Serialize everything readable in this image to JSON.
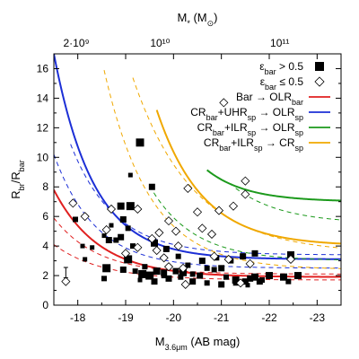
{
  "chart_data": {
    "type": "scatter",
    "xlabel": "M3.6μm (AB mag)",
    "ylabel": "Rbr/Rbar",
    "top_xlabel": "M* (M⊙)",
    "xlim": [
      -17.5,
      -23.5
    ],
    "ylim": [
      0,
      17
    ],
    "xticks": [
      -18,
      -19,
      -20,
      -21,
      -22,
      -23
    ],
    "yticks": [
      0,
      2,
      4,
      6,
      8,
      10,
      12,
      14,
      16
    ],
    "top_ticks": [
      {
        "label": "2·10⁹",
        "mag": -17.97
      },
      {
        "label": "10¹⁰",
        "mag": -19.72
      },
      {
        "label": "10¹¹",
        "mag": -22.22
      }
    ],
    "error_bar": {
      "x": -17.75,
      "y": 2.2,
      "dy": 0.35
    },
    "legend_position": "top-right",
    "legend": [
      {
        "label_main": "ε",
        "label_sub": "bar",
        "label_rest": " > 0.5",
        "marker": "filled-square"
      },
      {
        "label_main": "ε",
        "label_sub": "bar",
        "label_rest": " ≤ 0.5",
        "marker": "open-diamond"
      },
      {
        "label": "Bar → OLR_bar",
        "color": "#e02020"
      },
      {
        "label": "CR_bar+UHR_sp → OLR_sp",
        "color": "#1c2fd6"
      },
      {
        "label": "CR_bar+ILR_sp → OLR_sp",
        "color": "#1c9a1c"
      },
      {
        "label": "CR_bar+ILR_sp → CR_sp",
        "color": "#f0a800"
      }
    ],
    "series": [
      {
        "name": "ε_bar > 0.5",
        "marker": "filled-square",
        "points": [
          [
            -17.95,
            5.8,
            0.6
          ],
          [
            -18.1,
            4.0,
            0.5
          ],
          [
            -18.15,
            3.1,
            0.5
          ],
          [
            -18.3,
            3.9,
            0.5
          ],
          [
            -18.55,
            4.7,
            0.5
          ],
          [
            -18.7,
            5.4,
            0.5
          ],
          [
            -18.65,
            4.4,
            0.7
          ],
          [
            -18.9,
            6.7,
            0.8
          ],
          [
            -18.95,
            5.8,
            0.7
          ],
          [
            -19.1,
            6.7,
            0.9
          ],
          [
            -19.1,
            8.8,
            0.5
          ],
          [
            -19.3,
            11.0,
            0.9
          ],
          [
            -19.15,
            4.0,
            0.6
          ],
          [
            -18.9,
            4.6,
            0.7
          ],
          [
            -18.8,
            4.4,
            0.6
          ],
          [
            -19.05,
            3.1,
            0.9
          ],
          [
            -18.6,
            2.5,
            0.9
          ],
          [
            -18.55,
            1.8,
            0.6
          ],
          [
            -18.95,
            2.4,
            0.7
          ],
          [
            -19.2,
            2.3,
            0.6
          ],
          [
            -19.35,
            2.1,
            0.9
          ],
          [
            -19.5,
            2.0,
            0.9
          ],
          [
            -19.65,
            2.3,
            0.8
          ],
          [
            -19.8,
            2.2,
            0.7
          ],
          [
            -19.8,
            2.0,
            0.6
          ],
          [
            -19.9,
            1.8,
            0.7
          ],
          [
            -20.05,
            2.3,
            0.7
          ],
          [
            -20.2,
            2.2,
            0.8
          ],
          [
            -20.4,
            2.1,
            0.6
          ],
          [
            -20.55,
            2.0,
            0.7
          ],
          [
            -20.7,
            2.5,
            0.6
          ],
          [
            -20.85,
            2.4,
            0.6
          ],
          [
            -21.0,
            2.5,
            0.7
          ],
          [
            -21.1,
            1.9,
            0.6
          ],
          [
            -21.3,
            1.7,
            0.8
          ],
          [
            -21.3,
            1.5,
            0.6
          ],
          [
            -21.5,
            1.6,
            0.7
          ],
          [
            -21.6,
            1.8,
            0.7
          ],
          [
            -21.7,
            1.9,
            0.8
          ],
          [
            -21.85,
            1.7,
            0.6
          ],
          [
            -22.0,
            2.0,
            0.8
          ],
          [
            -22.3,
            1.9,
            0.8
          ],
          [
            -22.45,
            3.4,
            0.8
          ],
          [
            -21.7,
            3.5,
            0.7
          ],
          [
            -21.45,
            3.3,
            0.7
          ],
          [
            -21.2,
            3.0,
            0.6
          ],
          [
            -20.9,
            3.2,
            0.6
          ],
          [
            -20.6,
            3.0,
            0.7
          ],
          [
            -20.3,
            2.7,
            0.6
          ],
          [
            -20.1,
            3.3,
            0.6
          ],
          [
            -19.85,
            3.8,
            0.7
          ],
          [
            -19.6,
            4.2,
            0.8
          ],
          [
            -19.4,
            2.6,
            0.6
          ],
          [
            -19.6,
            1.6,
            0.7
          ],
          [
            -20.4,
            1.6,
            0.7
          ],
          [
            -21.0,
            1.4,
            0.7
          ],
          [
            -21.8,
            1.6,
            0.7
          ],
          [
            -22.4,
            1.6,
            0.6
          ],
          [
            -22.6,
            2.0,
            0.8
          ],
          [
            -21.55,
            1.35,
            0.5
          ],
          [
            -20.7,
            1.5,
            0.6
          ],
          [
            -19.3,
            1.7,
            0.5
          ],
          [
            -20.15,
            1.9,
            0.6
          ],
          [
            -19.55,
            8.0,
            0.7
          ],
          [
            -19.05,
            5.2,
            0.6
          ]
        ]
      },
      {
        "name": "ε_bar ≤ 0.5",
        "marker": "open-diamond",
        "points": [
          [
            -17.75,
            1.6
          ],
          [
            -17.9,
            6.9
          ],
          [
            -18.15,
            6.0
          ],
          [
            -18.6,
            5.1
          ],
          [
            -18.7,
            6.5
          ],
          [
            -19.0,
            3.5
          ],
          [
            -19.25,
            3.9
          ],
          [
            -19.25,
            6.5
          ],
          [
            -19.55,
            4.5
          ],
          [
            -19.65,
            3.7
          ],
          [
            -19.8,
            3.2
          ],
          [
            -19.9,
            5.7
          ],
          [
            -20.05,
            5.0
          ],
          [
            -20.1,
            4.0
          ],
          [
            -20.2,
            2.5
          ],
          [
            -20.25,
            1.4
          ],
          [
            -20.3,
            7.9
          ],
          [
            -20.5,
            6.3
          ],
          [
            -20.6,
            5.2
          ],
          [
            -20.8,
            4.8
          ],
          [
            -20.85,
            3.3
          ],
          [
            -21.15,
            3.1
          ],
          [
            -21.25,
            6.7
          ],
          [
            -21.4,
            1.5
          ],
          [
            -21.5,
            7.5
          ],
          [
            -21.5,
            8.4
          ],
          [
            -21.6,
            2.8
          ],
          [
            -22.45,
            3.1
          ],
          [
            -21.05,
            13.7
          ],
          [
            -20.95,
            6.4
          ],
          [
            -19.9,
            2.6
          ],
          [
            -19.7,
            4.9
          ]
        ]
      }
    ],
    "curves": [
      {
        "name": "Bar → OLR_bar",
        "color": "#e02020",
        "style": "solid",
        "a": 1.9,
        "b": 5.9,
        "k": 1.06,
        "x0": -17.5,
        "xmin": -17.5
      },
      {
        "name": "Bar → OLR_bar (upper)",
        "color": "#e02020",
        "style": "dashed",
        "a": 2.1,
        "b": 3.8,
        "k": 1.1,
        "x0": -17.5,
        "xmin": -17.5
      },
      {
        "name": "Bar → OLR_bar (lower)",
        "color": "#e02020",
        "style": "dashed",
        "a": 1.7,
        "b": 2.4,
        "k": 1.0,
        "x0": -17.5,
        "xmin": -17.5
      },
      {
        "name": "CR_bar+UHR_sp → OLR_sp",
        "color": "#1c2fd6",
        "style": "solid",
        "a": 3.1,
        "b": 13.9,
        "k": 1.2,
        "x0": -17.5,
        "xmin": -17.5
      },
      {
        "name": "CR_bar+UHR_sp → OLR_sp (upper)",
        "color": "#1c2fd6",
        "style": "dashed",
        "a": 3.4,
        "b": 11.0,
        "k": 1.1,
        "x0": -17.5,
        "xmin": -17.85
      },
      {
        "name": "CR_bar+UHR_sp → OLR_sp (lower)",
        "color": "#1c2fd6",
        "style": "dashed",
        "a": 2.5,
        "b": 7.7,
        "k": 1.15,
        "x0": -17.5,
        "xmin": -17.5
      },
      {
        "name": "CR_bar+ILR_sp → OLR_sp",
        "color": "#1c9a1c",
        "style": "solid",
        "a": 7.0,
        "b": 30.0,
        "k": 1.2,
        "x0": -18.5,
        "xmin": -20.7
      },
      {
        "name": "CR_bar+ILR_sp → OLR_sp (upper)",
        "color": "#1c9a1c",
        "style": "dashed",
        "a": 5.5,
        "b": 24.0,
        "k": 1.0,
        "x0": -19.0,
        "xmin": -21.3
      },
      {
        "name": "CR_bar+ILR_sp → OLR_sp (lower)",
        "color": "#1c9a1c",
        "style": "dashed",
        "a": 3.0,
        "b": 17.0,
        "k": 1.1,
        "x0": -18.4,
        "xmin": -19.5
      },
      {
        "name": "CR_bar+ILR_sp → CR_sp",
        "color": "#f0a800",
        "style": "solid",
        "a": 4.0,
        "b": 14.0,
        "k": 1.05,
        "x0": -19.25,
        "xmin": -19.65
      },
      {
        "name": "CR_bar+ILR_sp → CR_sp (upper)",
        "color": "#f0a800",
        "style": "dashed",
        "a": 3.5,
        "b": 13.4,
        "k": 0.8,
        "x0": -19.0,
        "xmin": -19.15
      },
      {
        "name": "CR_bar+ILR_sp → CR_sp (lower)",
        "color": "#f0a800",
        "style": "dashed",
        "a": 2.4,
        "b": 13.5,
        "k": 1.05,
        "x0": -18.55,
        "xmin": -18.55
      }
    ]
  }
}
